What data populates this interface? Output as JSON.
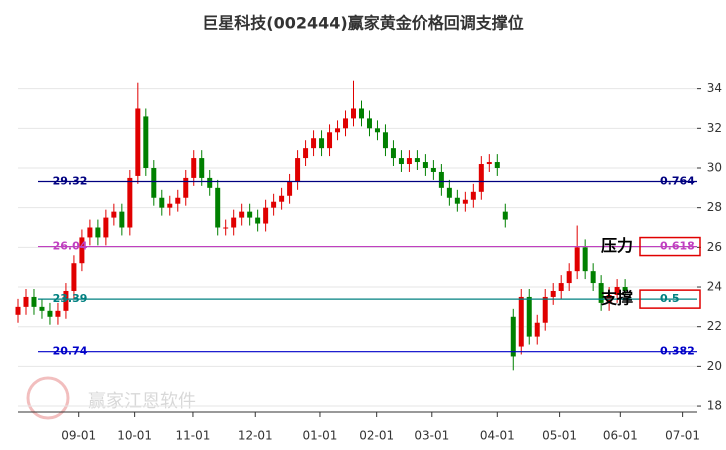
{
  "chart_data": {
    "type": "candlestick",
    "title": "巨星科技(002444)赢家黄金价格回调支撑位",
    "watermark": "赢家江恩软件",
    "up_color": "#e00000",
    "down_color": "#008000",
    "xlim": [
      0,
      85
    ],
    "xticks": [
      {
        "value": 7.6,
        "label": "09-01"
      },
      {
        "value": 14.6,
        "label": "10-01"
      },
      {
        "value": 21.9,
        "label": "11-01"
      },
      {
        "value": 29.7,
        "label": "12-01"
      },
      {
        "value": 37.8,
        "label": "01-01"
      },
      {
        "value": 44.9,
        "label": "02-01"
      },
      {
        "value": 51.8,
        "label": "03-01"
      },
      {
        "value": 60,
        "label": "04-01"
      },
      {
        "value": 67.8,
        "label": "05-01"
      },
      {
        "value": 75.4,
        "label": "06-01"
      },
      {
        "value": 83.2,
        "label": "07-01"
      }
    ],
    "ylim": [
      17.7,
      36.2
    ],
    "yticks": [
      18,
      20,
      22,
      24,
      26,
      28,
      30,
      32,
      34
    ],
    "grid": true,
    "open": [
      22.6,
      23.0,
      23.5,
      23.0,
      22.8,
      22.5,
      22.8,
      23.8,
      25.2,
      26.5,
      27.0,
      26.5,
      27.5,
      27.8,
      27.0,
      29.6,
      32.6,
      30.0,
      28.5,
      28.0,
      28.2,
      28.5,
      29.5,
      30.5,
      29.5,
      29.0,
      27.0,
      27.0,
      27.5,
      27.8,
      27.5,
      27.2,
      28.0,
      28.3,
      28.6,
      29.3,
      30.5,
      31.0,
      31.5,
      31.0,
      31.8,
      32.0,
      32.5,
      33.0,
      32.5,
      32.0,
      31.8,
      31.0,
      30.5,
      30.2,
      30.5,
      30.3,
      30.0,
      29.8,
      29.0,
      28.5,
      28.2,
      28.4,
      28.8,
      30.2,
      30.3,
      27.8,
      22.5,
      21.0,
      23.5,
      21.5,
      22.2,
      23.5,
      23.8,
      24.2,
      24.8,
      26.0,
      24.8,
      24.2,
      23.2,
      23.6,
      24.0
    ],
    "high": [
      23.4,
      23.9,
      23.9,
      23.4,
      23.2,
      23.2,
      24.2,
      25.6,
      26.9,
      27.4,
      27.4,
      27.9,
      28.2,
      28.2,
      29.9,
      34.3,
      33.0,
      30.4,
      28.9,
      28.6,
      28.9,
      29.9,
      30.9,
      30.9,
      29.9,
      29.4,
      27.4,
      27.9,
      28.2,
      28.2,
      27.9,
      28.4,
      28.7,
      29.0,
      29.7,
      30.9,
      31.4,
      31.9,
      31.9,
      32.2,
      32.4,
      32.9,
      34.4,
      33.4,
      32.9,
      32.4,
      32.2,
      31.4,
      30.9,
      30.9,
      30.9,
      30.7,
      30.4,
      30.2,
      29.4,
      28.9,
      28.8,
      29.2,
      30.6,
      30.7,
      30.7,
      28.2,
      22.9,
      23.9,
      23.9,
      22.6,
      23.9,
      24.2,
      24.6,
      25.2,
      27.1,
      26.4,
      25.2,
      24.6,
      24.0,
      24.4,
      24.4
    ],
    "low": [
      22.2,
      22.6,
      22.6,
      22.4,
      22.1,
      22.1,
      22.4,
      23.4,
      24.8,
      26.1,
      26.1,
      26.1,
      27.1,
      26.6,
      26.6,
      29.2,
      29.6,
      28.1,
      27.6,
      27.6,
      27.8,
      28.1,
      29.1,
      29.1,
      28.6,
      26.6,
      26.6,
      26.6,
      27.1,
      27.1,
      26.8,
      26.8,
      27.6,
      27.9,
      28.2,
      28.9,
      30.1,
      30.6,
      30.6,
      30.6,
      31.4,
      31.6,
      32.1,
      32.1,
      31.6,
      31.4,
      30.6,
      30.1,
      29.8,
      29.8,
      29.9,
      29.6,
      29.4,
      28.6,
      28.1,
      27.8,
      27.8,
      28.0,
      28.4,
      29.8,
      29.6,
      27.0,
      19.8,
      20.6,
      21.1,
      21.1,
      21.8,
      23.1,
      23.4,
      23.8,
      24.4,
      24.4,
      23.8,
      22.8,
      22.8,
      23.2,
      23.6
    ],
    "close": [
      23.0,
      23.5,
      23.0,
      22.8,
      22.5,
      22.8,
      23.8,
      25.2,
      26.5,
      27.0,
      26.5,
      27.5,
      27.8,
      27.0,
      29.5,
      33.0,
      30.0,
      28.5,
      28.0,
      28.2,
      28.5,
      29.5,
      30.5,
      29.5,
      29.0,
      27.0,
      27.0,
      27.5,
      27.8,
      27.5,
      27.2,
      28.0,
      28.3,
      28.6,
      29.3,
      30.5,
      31.0,
      31.5,
      31.0,
      31.8,
      32.0,
      32.5,
      33.0,
      32.5,
      32.0,
      31.8,
      31.0,
      30.5,
      30.2,
      30.5,
      30.3,
      30.0,
      29.8,
      29.0,
      28.5,
      28.2,
      28.4,
      28.8,
      30.2,
      30.3,
      30.0,
      27.4,
      20.5,
      23.5,
      21.5,
      22.2,
      23.5,
      23.8,
      24.2,
      24.8,
      26.0,
      24.8,
      24.2,
      23.2,
      23.6,
      24.0,
      23.8
    ],
    "levels": [
      {
        "price": 29.32,
        "ratio": 0.764,
        "color": "#000080"
      },
      {
        "price": 26.04,
        "ratio": 0.618,
        "color": "#c040c0",
        "note": "压力"
      },
      {
        "price": 23.39,
        "ratio": 0.5,
        "color": "#008080",
        "note": "支撑"
      },
      {
        "price": 20.74,
        "ratio": 0.382,
        "color": "#0000c8"
      }
    ]
  }
}
